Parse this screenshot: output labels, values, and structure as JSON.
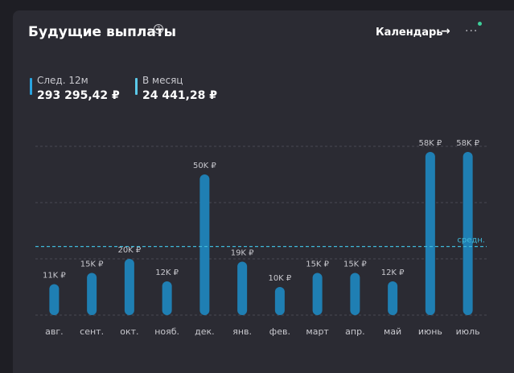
{
  "header": {
    "title": "Будущие выплаты",
    "help_icon": "question-circle-icon",
    "calendar_label": "Календарь",
    "arrow_glyph": "→",
    "more_glyph": "···"
  },
  "stats": {
    "next12": {
      "label": "След. 12м",
      "value": "293 295,42 ₽"
    },
    "monthly": {
      "label": "В месяц",
      "value": "24 441,28 ₽"
    }
  },
  "colors": {
    "bar": "#1f7fb3",
    "bar_top": "#2690c8",
    "avg_line": "#3fb8d8",
    "grid": "#4a4a53",
    "label": "#c8c8ce"
  },
  "chart_data": {
    "type": "bar",
    "categories": [
      "авг.",
      "сент.",
      "окт.",
      "нояб.",
      "дек.",
      "янв.",
      "фев.",
      "март",
      "апр.",
      "май",
      "июнь",
      "июль"
    ],
    "values": [
      11,
      15,
      20,
      12,
      50,
      19,
      10,
      15,
      15,
      12,
      58,
      58
    ],
    "value_labels": [
      "11K ₽",
      "15K ₽",
      "20K ₽",
      "12K ₽",
      "50K ₽",
      "19K ₽",
      "10K ₽",
      "15K ₽",
      "15K ₽",
      "12K ₽",
      "58K ₽",
      "58K ₽"
    ],
    "average": 24.4,
    "average_label": "средн.",
    "ylim": [
      0,
      60
    ],
    "grid": true
  }
}
